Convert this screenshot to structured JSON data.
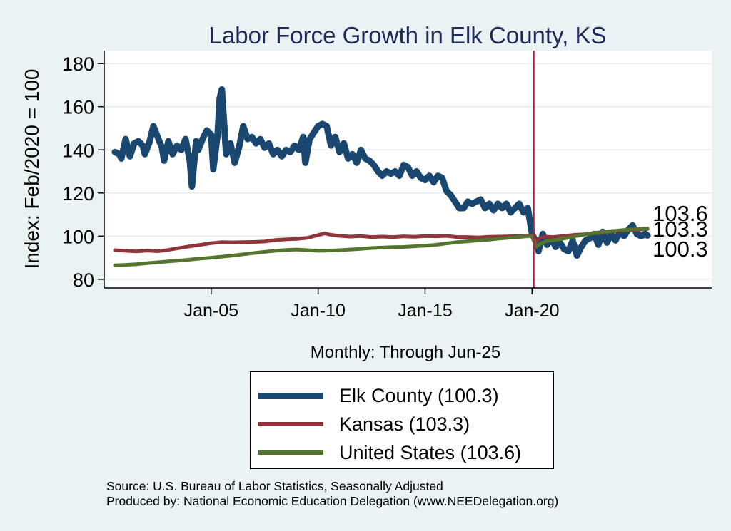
{
  "chart_data": {
    "type": "line",
    "title": "Labor Force Growth in Elk  County, KS",
    "xlabel": "Monthly: Through Jun-25",
    "ylabel": "Index: Feb/2020 = 100",
    "xlim": [
      2000.0,
      2028.4
    ],
    "ylim": [
      76.0,
      186.0
    ],
    "yticks": [
      80,
      100,
      120,
      140,
      160,
      180
    ],
    "xticks": [
      {
        "x": 2005.0,
        "label": "Jan-05"
      },
      {
        "x": 2010.0,
        "label": "Jan-10"
      },
      {
        "x": 2015.0,
        "label": "Jan-15"
      },
      {
        "x": 2020.0,
        "label": "Jan-20"
      }
    ],
    "reference_line_x": 2020.083,
    "grid": true,
    "legend_position": "bottom",
    "series": [
      {
        "name": "Elk  County",
        "legend_label": "Elk  County (100.3)",
        "end_label": "100.3",
        "color": "#1a476f",
        "points": [
          [
            2000.5,
            139
          ],
          [
            2000.7,
            138
          ],
          [
            2000.8,
            136
          ],
          [
            2001.0,
            145
          ],
          [
            2001.2,
            137
          ],
          [
            2001.4,
            143
          ],
          [
            2001.6,
            144
          ],
          [
            2001.8,
            142
          ],
          [
            2001.9,
            138
          ],
          [
            2002.1,
            143
          ],
          [
            2002.3,
            151
          ],
          [
            2002.5,
            146
          ],
          [
            2002.7,
            141
          ],
          [
            2002.8,
            135
          ],
          [
            2003.0,
            144
          ],
          [
            2003.2,
            138
          ],
          [
            2003.4,
            142
          ],
          [
            2003.6,
            140
          ],
          [
            2003.8,
            145
          ],
          [
            2004.0,
            135
          ],
          [
            2004.1,
            123
          ],
          [
            2004.3,
            144
          ],
          [
            2004.4,
            140
          ],
          [
            2004.6,
            145
          ],
          [
            2004.8,
            149
          ],
          [
            2005.0,
            147
          ],
          [
            2005.1,
            131
          ],
          [
            2005.3,
            147
          ],
          [
            2005.4,
            164
          ],
          [
            2005.5,
            168
          ],
          [
            2005.7,
            138
          ],
          [
            2005.9,
            143
          ],
          [
            2006.1,
            134
          ],
          [
            2006.3,
            141
          ],
          [
            2006.5,
            151
          ],
          [
            2006.7,
            145
          ],
          [
            2006.9,
            146
          ],
          [
            2007.1,
            143
          ],
          [
            2007.3,
            145
          ],
          [
            2007.5,
            141
          ],
          [
            2007.7,
            143
          ],
          [
            2007.9,
            138
          ],
          [
            2008.1,
            140
          ],
          [
            2008.3,
            137
          ],
          [
            2008.5,
            140
          ],
          [
            2008.7,
            139
          ],
          [
            2008.9,
            142
          ],
          [
            2009.1,
            140
          ],
          [
            2009.3,
            146
          ],
          [
            2009.4,
            134
          ],
          [
            2009.6,
            145
          ],
          [
            2009.8,
            148
          ],
          [
            2010.0,
            151
          ],
          [
            2010.2,
            152
          ],
          [
            2010.4,
            151
          ],
          [
            2010.6,
            142
          ],
          [
            2010.8,
            146
          ],
          [
            2011.0,
            139
          ],
          [
            2011.2,
            143
          ],
          [
            2011.4,
            136
          ],
          [
            2011.6,
            138
          ],
          [
            2011.8,
            134
          ],
          [
            2012.0,
            140
          ],
          [
            2012.2,
            136
          ],
          [
            2012.4,
            135
          ],
          [
            2012.6,
            133
          ],
          [
            2012.8,
            130
          ],
          [
            2013.0,
            128
          ],
          [
            2013.2,
            130
          ],
          [
            2013.4,
            129
          ],
          [
            2013.6,
            130
          ],
          [
            2013.8,
            128
          ],
          [
            2014.0,
            133
          ],
          [
            2014.2,
            132
          ],
          [
            2014.4,
            128
          ],
          [
            2014.6,
            130
          ],
          [
            2014.8,
            127
          ],
          [
            2015.0,
            126
          ],
          [
            2015.2,
            128
          ],
          [
            2015.4,
            125
          ],
          [
            2015.6,
            128
          ],
          [
            2015.8,
            127
          ],
          [
            2016.0,
            121
          ],
          [
            2016.2,
            119
          ],
          [
            2016.4,
            116
          ],
          [
            2016.6,
            113
          ],
          [
            2016.8,
            113
          ],
          [
            2017.0,
            116
          ],
          [
            2017.2,
            115
          ],
          [
            2017.4,
            116
          ],
          [
            2017.6,
            117
          ],
          [
            2017.8,
            113
          ],
          [
            2018.0,
            115
          ],
          [
            2018.2,
            112
          ],
          [
            2018.4,
            115
          ],
          [
            2018.6,
            113
          ],
          [
            2018.8,
            115
          ],
          [
            2019.0,
            111
          ],
          [
            2019.2,
            113
          ],
          [
            2019.4,
            115
          ],
          [
            2019.6,
            111
          ],
          [
            2019.8,
            113
          ],
          [
            2020.0,
            101
          ],
          [
            2020.1,
            99
          ],
          [
            2020.2,
            97
          ],
          [
            2020.3,
            93
          ],
          [
            2020.5,
            101
          ],
          [
            2020.7,
            96
          ],
          [
            2020.9,
            99
          ],
          [
            2021.1,
            95
          ],
          [
            2021.3,
            97
          ],
          [
            2021.5,
            94
          ],
          [
            2021.7,
            93
          ],
          [
            2021.9,
            98
          ],
          [
            2022.1,
            91
          ],
          [
            2022.3,
            95
          ],
          [
            2022.5,
            98
          ],
          [
            2022.7,
            99
          ],
          [
            2022.9,
            101
          ],
          [
            2023.1,
            96
          ],
          [
            2023.3,
            102
          ],
          [
            2023.5,
            97
          ],
          [
            2023.7,
            101
          ],
          [
            2023.9,
            98
          ],
          [
            2024.1,
            102
          ],
          [
            2024.3,
            100
          ],
          [
            2024.5,
            103
          ],
          [
            2024.7,
            105
          ],
          [
            2024.9,
            101
          ],
          [
            2025.1,
            100
          ],
          [
            2025.3,
            101
          ],
          [
            2025.4,
            100.3
          ]
        ]
      },
      {
        "name": "Kansas",
        "legend_label": "Kansas (103.3)",
        "end_label": "103.3",
        "color": "#90353b",
        "points": [
          [
            2000.5,
            93.5
          ],
          [
            2001.0,
            93.2
          ],
          [
            2001.5,
            92.9
          ],
          [
            2002.0,
            93.3
          ],
          [
            2002.5,
            93.0
          ],
          [
            2003.0,
            93.6
          ],
          [
            2003.5,
            94.5
          ],
          [
            2004.0,
            95.3
          ],
          [
            2004.5,
            96.0
          ],
          [
            2005.0,
            96.7
          ],
          [
            2005.5,
            97.2
          ],
          [
            2006.0,
            97.1
          ],
          [
            2006.5,
            97.2
          ],
          [
            2007.0,
            97.3
          ],
          [
            2007.5,
            97.5
          ],
          [
            2008.0,
            98.2
          ],
          [
            2008.5,
            98.5
          ],
          [
            2009.0,
            98.7
          ],
          [
            2009.5,
            99.2
          ],
          [
            2010.0,
            100.5
          ],
          [
            2010.3,
            101.3
          ],
          [
            2010.6,
            100.6
          ],
          [
            2011.0,
            100.1
          ],
          [
            2011.5,
            99.8
          ],
          [
            2012.0,
            100.0
          ],
          [
            2012.5,
            99.6
          ],
          [
            2013.0,
            99.8
          ],
          [
            2013.5,
            99.6
          ],
          [
            2014.0,
            99.9
          ],
          [
            2014.5,
            99.7
          ],
          [
            2015.0,
            100.0
          ],
          [
            2015.5,
            99.9
          ],
          [
            2016.0,
            100.1
          ],
          [
            2016.5,
            99.6
          ],
          [
            2017.0,
            99.6
          ],
          [
            2017.5,
            99.4
          ],
          [
            2018.0,
            99.7
          ],
          [
            2018.5,
            99.8
          ],
          [
            2019.0,
            99.9
          ],
          [
            2019.5,
            100.1
          ],
          [
            2020.0,
            100.3
          ],
          [
            2020.2,
            97.5
          ],
          [
            2020.3,
            98.8
          ],
          [
            2020.6,
            99.8
          ],
          [
            2021.0,
            99.6
          ],
          [
            2021.5,
            100.1
          ],
          [
            2022.0,
            100.6
          ],
          [
            2022.5,
            100.9
          ],
          [
            2023.0,
            101.4
          ],
          [
            2023.5,
            101.9
          ],
          [
            2024.0,
            102.4
          ],
          [
            2024.5,
            102.7
          ],
          [
            2025.0,
            103.0
          ],
          [
            2025.4,
            103.3
          ]
        ]
      },
      {
        "name": "United States",
        "legend_label": "United States (103.6)",
        "end_label": "103.6",
        "color": "#55752f",
        "points": [
          [
            2000.5,
            86.5
          ],
          [
            2001.0,
            86.7
          ],
          [
            2001.5,
            87.0
          ],
          [
            2002.0,
            87.5
          ],
          [
            2002.5,
            87.9
          ],
          [
            2003.0,
            88.3
          ],
          [
            2003.5,
            88.7
          ],
          [
            2004.0,
            89.1
          ],
          [
            2004.5,
            89.6
          ],
          [
            2005.0,
            90.0
          ],
          [
            2005.5,
            90.5
          ],
          [
            2006.0,
            91.0
          ],
          [
            2006.5,
            91.6
          ],
          [
            2007.0,
            92.2
          ],
          [
            2007.5,
            92.7
          ],
          [
            2008.0,
            93.2
          ],
          [
            2008.5,
            93.6
          ],
          [
            2009.0,
            93.8
          ],
          [
            2009.5,
            93.5
          ],
          [
            2010.0,
            93.2
          ],
          [
            2010.5,
            93.3
          ],
          [
            2011.0,
            93.5
          ],
          [
            2011.5,
            93.8
          ],
          [
            2012.0,
            94.1
          ],
          [
            2012.5,
            94.5
          ],
          [
            2013.0,
            94.7
          ],
          [
            2013.5,
            94.9
          ],
          [
            2014.0,
            95.0
          ],
          [
            2014.5,
            95.3
          ],
          [
            2015.0,
            95.6
          ],
          [
            2015.5,
            96.0
          ],
          [
            2016.0,
            96.6
          ],
          [
            2016.5,
            97.2
          ],
          [
            2017.0,
            97.6
          ],
          [
            2017.5,
            98.0
          ],
          [
            2018.0,
            98.4
          ],
          [
            2018.5,
            98.9
          ],
          [
            2019.0,
            99.3
          ],
          [
            2019.5,
            99.7
          ],
          [
            2020.0,
            100.1
          ],
          [
            2020.2,
            95.0
          ],
          [
            2020.4,
            96.5
          ],
          [
            2020.7,
            97.8
          ],
          [
            2021.0,
            98.1
          ],
          [
            2021.5,
            98.9
          ],
          [
            2022.0,
            99.9
          ],
          [
            2022.5,
            100.8
          ],
          [
            2023.0,
            101.6
          ],
          [
            2023.5,
            102.2
          ],
          [
            2024.0,
            102.6
          ],
          [
            2024.5,
            103.0
          ],
          [
            2025.0,
            103.3
          ],
          [
            2025.4,
            103.6
          ]
        ]
      }
    ],
    "source_text": "Source: U.S. Bureau of Labor Statistics, Seasonally Adjusted",
    "producer_text": "Produced by: National Economic Education Delegation (www.NEEDelegation.org)"
  }
}
